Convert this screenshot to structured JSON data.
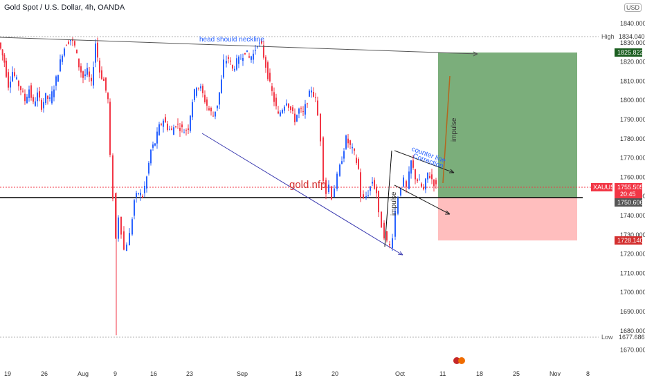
{
  "header": {
    "title": "Gold Spot / U.S. Dollar, 4h, OANDA",
    "currency": "USD"
  },
  "colors": {
    "bull": "#2962ff",
    "bear": "#f23645",
    "target_zone": "#5a9a5a",
    "stop_zone": "#ffb3b3",
    "trendline": "#3b3bb0"
  },
  "chart_data": {
    "type": "candlestick",
    "symbol": "XAUUSD",
    "interval": "4h",
    "ylim": [
      1664,
      1850
    ],
    "yticks": [
      1840,
      1830,
      1820,
      1810,
      1800,
      1790,
      1780,
      1770,
      1760,
      1750,
      1740,
      1730,
      1720,
      1710,
      1700,
      1690,
      1680,
      1670
    ],
    "ytick_labels": [
      "1840.000",
      "1830.000",
      "1820.000",
      "1810.000",
      "1800.000",
      "1790.000",
      "1780.000",
      "1770.000",
      "1760.000",
      "1750.000",
      "1740.000",
      "1730.000",
      "1720.000",
      "1710.000",
      "1700.000",
      "1690.000",
      "1680.000",
      "1670.000"
    ],
    "xticks": [
      "19",
      "26",
      "Aug",
      "9",
      "16",
      "23",
      "Sep",
      "13",
      "20",
      "Oct",
      "11",
      "18",
      "25",
      "Nov",
      "8"
    ],
    "high": {
      "label": "High",
      "value": "1834.040"
    },
    "low": {
      "label": "Low",
      "value": "1677.686"
    },
    "current_price": {
      "label": "XAUUSD",
      "value": "1755.505",
      "countdown": "20:45"
    },
    "levels": {
      "take_profit": "1825.822",
      "entry": "1750.606",
      "stop_loss": "1728.140"
    },
    "annotations": {
      "neckline": "head should neckline",
      "label": "gold nfp",
      "counter_line": "counter line",
      "correction": "Correction",
      "impulse_left": "impulse",
      "impulse_right": "impulse"
    },
    "price_path": [
      [
        0,
        1830
      ],
      [
        8,
        1820
      ],
      [
        14,
        1808
      ],
      [
        20,
        1815
      ],
      [
        26,
        1810
      ],
      [
        32,
        1806
      ],
      [
        38,
        1800
      ],
      [
        44,
        1806
      ],
      [
        50,
        1798
      ],
      [
        56,
        1803
      ],
      [
        62,
        1797
      ],
      [
        68,
        1802
      ],
      [
        74,
        1800
      ],
      [
        80,
        1807
      ],
      [
        86,
        1815
      ],
      [
        92,
        1825
      ],
      [
        98,
        1830
      ],
      [
        104,
        1832
      ],
      [
        110,
        1828
      ],
      [
        116,
        1818
      ],
      [
        122,
        1812
      ],
      [
        128,
        1815
      ],
      [
        134,
        1808
      ],
      [
        140,
        1830
      ],
      [
        146,
        1815
      ],
      [
        152,
        1810
      ],
      [
        158,
        1800
      ],
      [
        162,
        1770
      ],
      [
        166,
        1750
      ],
      [
        170,
        1728
      ],
      [
        174,
        1740
      ],
      [
        178,
        1732
      ],
      [
        182,
        1722
      ],
      [
        186,
        1726
      ],
      [
        190,
        1730
      ],
      [
        196,
        1748
      ],
      [
        202,
        1752
      ],
      [
        208,
        1750
      ],
      [
        214,
        1760
      ],
      [
        220,
        1774
      ],
      [
        226,
        1778
      ],
      [
        232,
        1786
      ],
      [
        238,
        1790
      ],
      [
        244,
        1786
      ],
      [
        250,
        1784
      ],
      [
        256,
        1788
      ],
      [
        262,
        1786
      ],
      [
        268,
        1784
      ],
      [
        274,
        1786
      ],
      [
        280,
        1800
      ],
      [
        286,
        1808
      ],
      [
        292,
        1806
      ],
      [
        298,
        1800
      ],
      [
        304,
        1795
      ],
      [
        310,
        1792
      ],
      [
        316,
        1798
      ],
      [
        322,
        1810
      ],
      [
        326,
        1820
      ],
      [
        332,
        1822
      ],
      [
        338,
        1816
      ],
      [
        344,
        1820
      ],
      [
        350,
        1822
      ],
      [
        356,
        1826
      ],
      [
        362,
        1822
      ],
      [
        368,
        1824
      ],
      [
        374,
        1830
      ],
      [
        380,
        1828
      ],
      [
        386,
        1818
      ],
      [
        392,
        1808
      ],
      [
        398,
        1800
      ],
      [
        404,
        1792
      ],
      [
        410,
        1796
      ],
      [
        416,
        1800
      ],
      [
        422,
        1795
      ],
      [
        428,
        1790
      ],
      [
        434,
        1795
      ],
      [
        440,
        1793
      ],
      [
        446,
        1800
      ],
      [
        452,
        1806
      ],
      [
        458,
        1800
      ],
      [
        462,
        1792
      ],
      [
        466,
        1780
      ],
      [
        470,
        1760
      ],
      [
        474,
        1752
      ],
      [
        478,
        1756
      ],
      [
        482,
        1750
      ],
      [
        486,
        1755
      ],
      [
        490,
        1760
      ],
      [
        496,
        1770
      ],
      [
        502,
        1780
      ],
      [
        508,
        1776
      ],
      [
        514,
        1772
      ],
      [
        520,
        1764
      ],
      [
        524,
        1750
      ],
      [
        528,
        1748
      ],
      [
        534,
        1752
      ],
      [
        540,
        1758
      ],
      [
        546,
        1752
      ],
      [
        550,
        1740
      ],
      [
        554,
        1735
      ],
      [
        558,
        1730
      ],
      [
        562,
        1726
      ],
      [
        566,
        1724
      ],
      [
        570,
        1730
      ],
      [
        574,
        1742
      ],
      [
        578,
        1750
      ],
      [
        582,
        1756
      ],
      [
        586,
        1758
      ],
      [
        590,
        1754
      ],
      [
        596,
        1768
      ],
      [
        602,
        1760
      ],
      [
        608,
        1757
      ],
      [
        614,
        1753
      ],
      [
        620,
        1762
      ],
      [
        626,
        1759
      ],
      [
        632,
        1755
      ]
    ]
  }
}
